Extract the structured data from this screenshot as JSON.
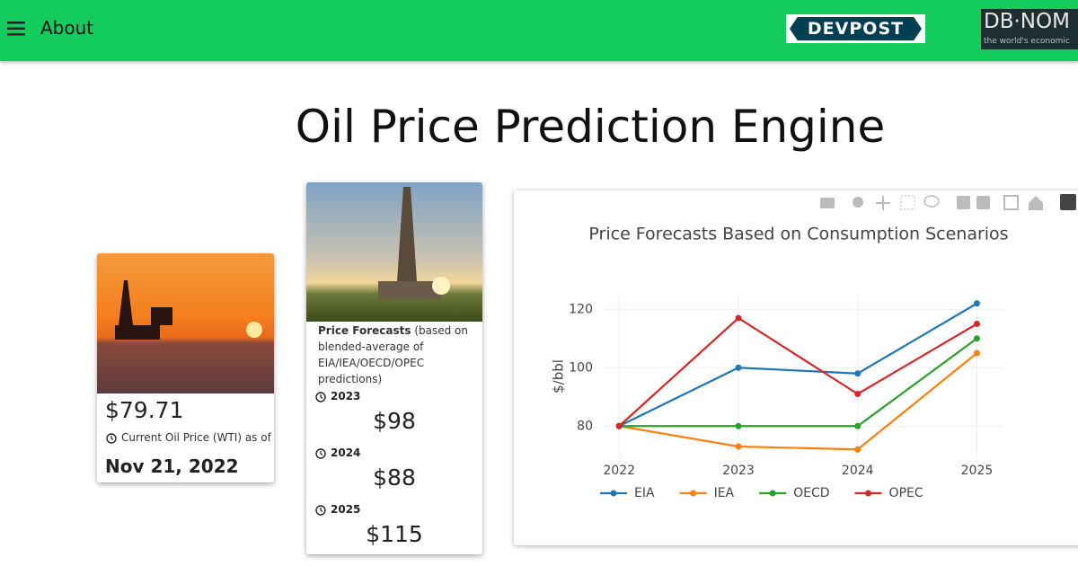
{
  "nav": {
    "menu_label": "About",
    "devpost_logo": "DEVPOST",
    "dbnomics_logo": "DB·NOM",
    "dbnomics_tagline": "the world's economic"
  },
  "title": "Oil Price Prediction Engine",
  "current_card": {
    "price": "$79.71",
    "caption": "Current Oil Price (WTI) as of",
    "date": "Nov 21, 2022"
  },
  "forecast_card": {
    "heading": "Price Forecasts",
    "note": "(based on blended-average of EIA/IEA/OECD/OPEC predictions)",
    "forecasts": [
      {
        "year": "2023",
        "price": "$98"
      },
      {
        "year": "2024",
        "price": "$88"
      },
      {
        "year": "2025",
        "price": "$115"
      }
    ]
  },
  "chart_data": {
    "type": "line",
    "title": "Price Forecasts Based on Consumption Scenarios",
    "y_label": "$/bbl",
    "x": [
      2022,
      2023,
      2024,
      2025
    ],
    "series": [
      {
        "name": "EIA",
        "color": "#1f77b4",
        "values": [
          80,
          100,
          98,
          122
        ]
      },
      {
        "name": "IEA",
        "color": "#ff7f0e",
        "values": [
          80,
          73,
          72,
          105
        ]
      },
      {
        "name": "OECD",
        "color": "#2ca02c",
        "values": [
          80,
          80,
          80,
          110
        ]
      },
      {
        "name": "OPEC",
        "color": "#d62728",
        "values": [
          80,
          117,
          91,
          115
        ]
      }
    ],
    "xlim": [
      2021.87,
      2025.23
    ],
    "xticks": [
      2022,
      2023,
      2024,
      2025
    ],
    "ylim": [
      69,
      125
    ],
    "yticks": [
      80,
      100,
      120
    ],
    "grid": true,
    "legend": "bottom"
  }
}
